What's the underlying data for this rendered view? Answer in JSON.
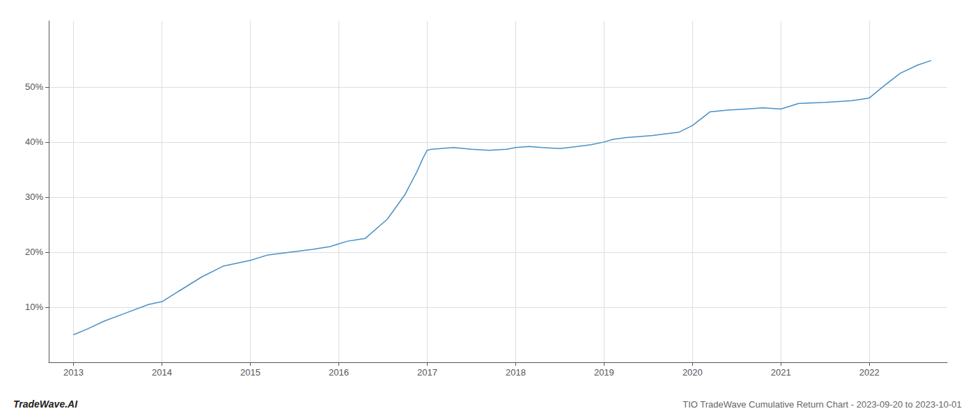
{
  "chart_data": {
    "type": "line",
    "title": "TIO TradeWave Cumulative Return Chart - 2023-09-20 to 2023-10-01",
    "annotations": [
      "TradeWave.AI"
    ],
    "color": "#4a90c4",
    "x": [
      2013.0,
      2013.15,
      2013.35,
      2013.6,
      2013.85,
      2014.0,
      2014.2,
      2014.45,
      2014.7,
      2015.0,
      2015.2,
      2015.45,
      2015.7,
      2015.9,
      2016.0,
      2016.1,
      2016.3,
      2016.55,
      2016.75,
      2016.88,
      2016.95,
      2017.0,
      2017.05,
      2017.15,
      2017.3,
      2017.5,
      2017.7,
      2017.9,
      2018.0,
      2018.15,
      2018.3,
      2018.5,
      2018.7,
      2018.85,
      2019.0,
      2019.1,
      2019.25,
      2019.4,
      2019.55,
      2019.7,
      2019.85,
      2020.0,
      2020.2,
      2020.4,
      2020.6,
      2020.8,
      2021.0,
      2021.2,
      2021.5,
      2021.8,
      2022.0,
      2022.15,
      2022.35,
      2022.55,
      2022.7
    ],
    "values": [
      5.0,
      6.0,
      7.5,
      9.0,
      10.5,
      11.0,
      13.0,
      15.5,
      17.5,
      18.5,
      19.5,
      20.0,
      20.5,
      21.0,
      21.5,
      22.0,
      22.5,
      26.0,
      30.5,
      34.5,
      37.0,
      38.5,
      38.7,
      38.8,
      39.0,
      38.7,
      38.5,
      38.7,
      39.0,
      39.2,
      39.0,
      38.8,
      39.2,
      39.5,
      40.0,
      40.5,
      40.8,
      41.0,
      41.2,
      41.5,
      41.8,
      43.0,
      45.5,
      45.8,
      46.0,
      46.2,
      46.0,
      47.0,
      47.2,
      47.5,
      48.0,
      50.0,
      52.5,
      54.0,
      54.8
    ],
    "xlim": [
      2012.72,
      2022.88
    ],
    "xticks": [
      2013,
      2014,
      2015,
      2016,
      2017,
      2018,
      2019,
      2020,
      2021,
      2022
    ],
    "ylim": [
      0,
      62
    ],
    "yticks": [
      {
        "value": 10,
        "label": "10%"
      },
      {
        "value": 20,
        "label": "20%"
      },
      {
        "value": 30,
        "label": "30%"
      },
      {
        "value": 40,
        "label": "40%"
      },
      {
        "value": 50,
        "label": "50%"
      }
    ],
    "grid": true
  }
}
